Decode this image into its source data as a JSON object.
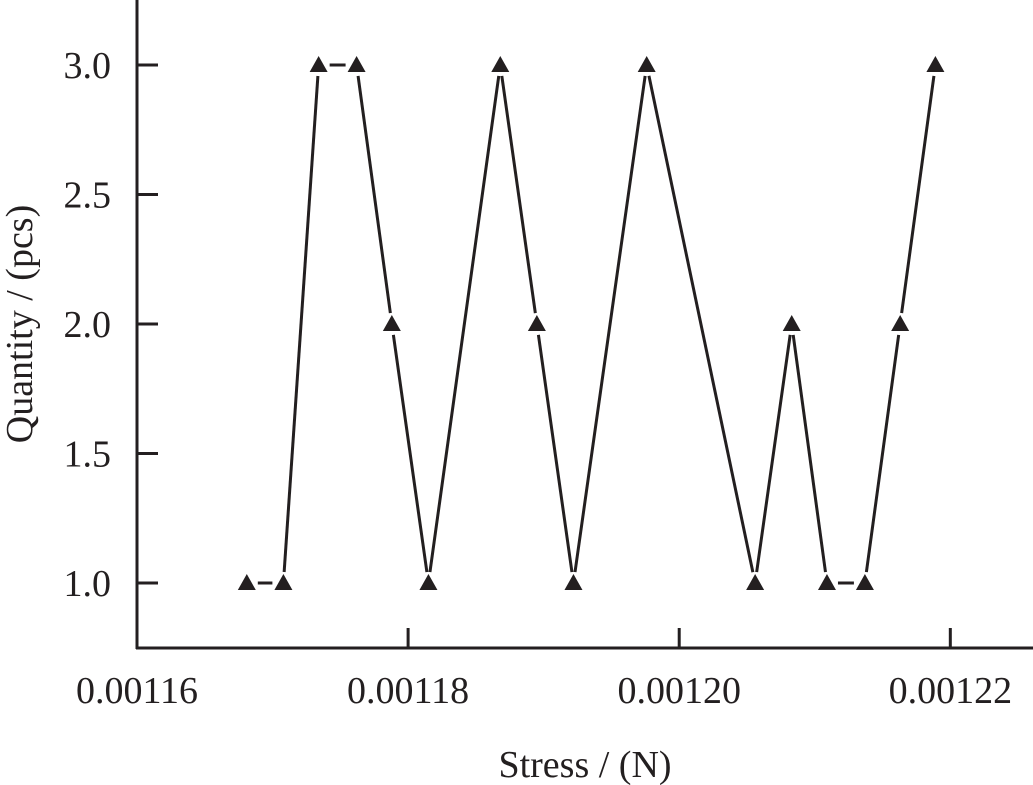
{
  "chart_data": {
    "type": "line",
    "marker": "triangle",
    "color": "#231f20",
    "xlabel": "Stress / (N)",
    "ylabel": "Quantity / (pcs)",
    "xlim": [
      0.00116,
      0.0012261
    ],
    "ylim": [
      0.749,
      3.251
    ],
    "xticks": [
      0.00116,
      0.00118,
      0.0012,
      0.00122
    ],
    "xtick_labels": [
      "0.00116",
      "0.00118",
      "0.00120",
      "0.00122"
    ],
    "yticks": [
      1.0,
      1.5,
      2.0,
      2.5,
      3.0
    ],
    "ytick_labels": [
      "1.0",
      "1.5",
      "2.0",
      "2.5",
      "3.0"
    ],
    "grid": false,
    "x": [
      0.0011681,
      0.0011708,
      0.0011734,
      0.0011762,
      0.0011788,
      0.0011815,
      0.0011868,
      0.0011895,
      0.0011922,
      0.0011976,
      0.0012056,
      0.0012083,
      0.0012109,
      0.0012137,
      0.0012163,
      0.0012189
    ],
    "y": [
      1,
      1,
      3,
      3,
      2,
      1,
      3,
      2,
      1,
      3,
      1,
      2,
      1,
      1,
      2,
      3
    ]
  }
}
